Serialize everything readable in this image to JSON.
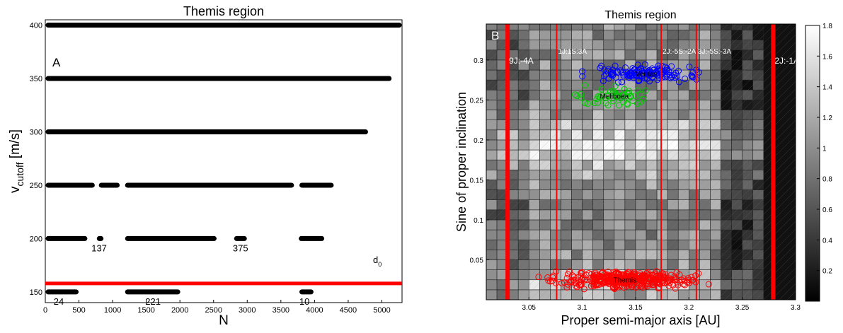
{
  "chart_data": [
    {
      "type": "scatter",
      "title": "Themis region",
      "panel_label": "A",
      "xlabel": "N",
      "ylabel_main": "v",
      "ylabel_sub": "cutoff",
      "ylabel_unit": " [m/s]",
      "xlim": [
        0,
        5300
      ],
      "ylim": [
        140,
        405
      ],
      "x_ticks": [
        0,
        500,
        1000,
        1500,
        2000,
        2500,
        3000,
        3500,
        4000,
        4500,
        5000
      ],
      "y_ticks": [
        150,
        200,
        250,
        300,
        350,
        400
      ],
      "colors": {
        "points": "#000000",
        "threshold": "#ff0000"
      },
      "series": [
        {
          "y": 400,
          "segments": [
            [
              0,
              5300
            ]
          ]
        },
        {
          "y": 350,
          "segments": [
            [
              0,
              5150
            ]
          ]
        },
        {
          "y": 300,
          "segments": [
            [
              0,
              4800
            ]
          ]
        },
        {
          "y": 250,
          "segments": [
            [
              0,
              740
            ],
            [
              790,
              1110
            ],
            [
              1180,
              3700
            ],
            [
              3770,
              4290
            ]
          ]
        },
        {
          "y": 200,
          "segments": [
            [
              0,
              630
            ],
            [
              760,
              870
            ],
            [
              1180,
              2550
            ],
            [
              2800,
              3000
            ],
            [
              3760,
              4150
            ]
          ]
        },
        {
          "y": 150,
          "segments": [
            [
              0,
              500
            ],
            [
              1180,
              2010
            ],
            [
              3770,
              3990
            ]
          ]
        }
      ],
      "threshold": {
        "y": 158,
        "label_main": "d",
        "label_sub": "0"
      },
      "annotations": [
        {
          "text": "137",
          "x": 800,
          "y": 190
        },
        {
          "text": "375",
          "x": 2900,
          "y": 190
        },
        {
          "text": "24",
          "x": 200,
          "y": 140
        },
        {
          "text": "221",
          "x": 1600,
          "y": 140
        },
        {
          "text": "10",
          "x": 3850,
          "y": 140
        }
      ]
    },
    {
      "type": "heatmap",
      "title": "Themis region",
      "panel_label": "B",
      "xlabel": "Proper semi-major axis [AU]",
      "ylabel": "Sine of proper inclination",
      "xlim": [
        3.01,
        3.3
      ],
      "ylim": [
        0.0,
        0.345
      ],
      "x_ticks": [
        3.05,
        3.1,
        3.15,
        3.2,
        3.25,
        3.3
      ],
      "y_ticks": [
        0.05,
        0.1,
        0.15,
        0.2,
        0.25,
        0.3
      ],
      "colorbar": {
        "min": 0,
        "max": 1.8,
        "ticks": [
          0.2,
          0.4,
          0.6,
          0.8,
          1,
          1.2,
          1.4,
          1.6,
          1.8
        ]
      },
      "colors": {
        "resonance": "#ff0000",
        "family_1": "#0000ff",
        "family_2": "#00cc00",
        "family_3": "#ff0000"
      },
      "resonances": [
        {
          "a": 3.03,
          "label": "9J:-4A",
          "strong": true
        },
        {
          "a": 3.076,
          "label": "1J:1S:3A",
          "strong": false
        },
        {
          "a": 3.174,
          "label": "2J:-5S:-2A",
          "strong": false
        },
        {
          "a": 3.207,
          "label": "3J:-5S:-3A",
          "strong": false
        },
        {
          "a": 3.279,
          "label": "2J:-1A",
          "strong": true
        }
      ],
      "families": [
        {
          "label": "Veritas",
          "a_center": 3.16,
          "sini_center": 0.283,
          "a_spread": 0.07,
          "sini_spread": 0.012,
          "n": 130
        },
        {
          "label": "Meliboea",
          "a_center": 3.13,
          "sini_center": 0.255,
          "a_spread": 0.045,
          "sini_spread": 0.015,
          "n": 55
        },
        {
          "label": "Themis",
          "a_center": 3.14,
          "sini_center": 0.025,
          "a_spread": 0.09,
          "sini_spread": 0.012,
          "n": 380
        }
      ]
    }
  ]
}
